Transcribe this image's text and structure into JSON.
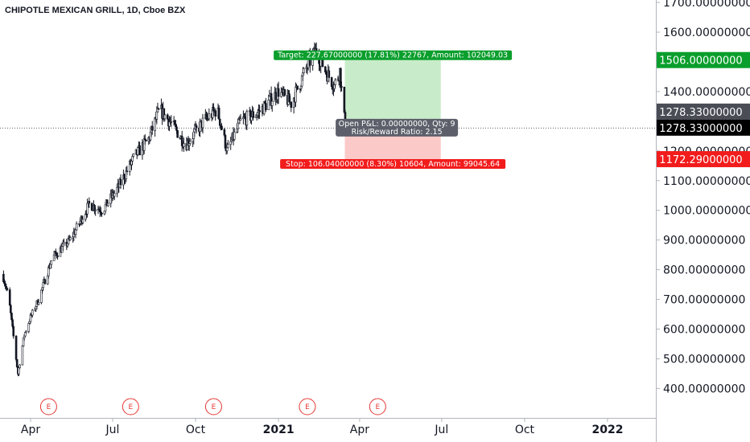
{
  "header": {
    "title": "CHIPOTLE MEXICAN GRILL, 1D, Cboe BZX"
  },
  "colors": {
    "target": "#0a9e2c",
    "stop": "#f21c1c",
    "profit_zone": "#c8ecc9",
    "loss_zone": "#fcc9c9",
    "tag_dark": "#4a4c56",
    "tag_black": "#000000",
    "candle": "#131722",
    "earnings": "#e53935"
  },
  "chart_data": {
    "type": "candlestick",
    "title": "CHIPOTLE MEXICAN GRILL, 1D, Cboe BZX",
    "y_axis": {
      "min": 350,
      "max": 1700,
      "ticks": [
        400,
        500,
        600,
        700,
        800,
        900,
        1000,
        1100,
        1200,
        1300,
        1400,
        1500,
        1600,
        1700
      ],
      "tick_labels": [
        "400.00000000",
        "500.00000000",
        "600.00000000",
        "700.00000000",
        "800.00000000",
        "900.00000000",
        "1000.00000000",
        "1100.00000000",
        "1200.00000000",
        "1300.00000000",
        "1400.00000000",
        "1500.00000000",
        "1600.00000000",
        "1700.00000000"
      ]
    },
    "x_axis": {
      "labels": [
        {
          "label": "Apr",
          "date": "2020-04-01"
        },
        {
          "label": "Jul",
          "date": "2020-07-01"
        },
        {
          "label": "Oct",
          "date": "2020-10-01"
        },
        {
          "label": "2021",
          "date": "2021-01-01"
        },
        {
          "label": "Apr",
          "date": "2021-04-01"
        },
        {
          "label": "Jul",
          "date": "2021-07-01"
        },
        {
          "label": "Oct",
          "date": "2021-10-01"
        },
        {
          "label": "2022",
          "date": "2022-01-01"
        }
      ]
    },
    "price_path": [
      {
        "date": "2020-03-01",
        "close": 785
      },
      {
        "date": "2020-03-08",
        "close": 700
      },
      {
        "date": "2020-03-18",
        "close": 450
      },
      {
        "date": "2020-03-25",
        "close": 580
      },
      {
        "date": "2020-04-01",
        "close": 640
      },
      {
        "date": "2020-04-10",
        "close": 700
      },
      {
        "date": "2020-04-25",
        "close": 840
      },
      {
        "date": "2020-05-15",
        "close": 900
      },
      {
        "date": "2020-06-05",
        "close": 1020
      },
      {
        "date": "2020-06-20",
        "close": 1000
      },
      {
        "date": "2020-07-08",
        "close": 1080
      },
      {
        "date": "2020-07-25",
        "close": 1180
      },
      {
        "date": "2020-08-10",
        "close": 1240
      },
      {
        "date": "2020-08-22",
        "close": 1340
      },
      {
        "date": "2020-09-05",
        "close": 1290
      },
      {
        "date": "2020-09-20",
        "close": 1220
      },
      {
        "date": "2020-10-10",
        "close": 1300
      },
      {
        "date": "2020-10-25",
        "close": 1340
      },
      {
        "date": "2020-11-05",
        "close": 1200
      },
      {
        "date": "2020-11-20",
        "close": 1300
      },
      {
        "date": "2020-12-10",
        "close": 1330
      },
      {
        "date": "2021-01-01",
        "close": 1400
      },
      {
        "date": "2021-01-15",
        "close": 1360
      },
      {
        "date": "2021-02-01",
        "close": 1480
      },
      {
        "date": "2021-02-12",
        "close": 1540
      },
      {
        "date": "2021-02-22",
        "close": 1470
      },
      {
        "date": "2021-03-04",
        "close": 1420
      },
      {
        "date": "2021-03-10",
        "close": 1470
      },
      {
        "date": "2021-03-16",
        "close": 1278
      }
    ],
    "earnings_markers": [
      "2020-04-21",
      "2020-07-21",
      "2020-10-21",
      "2021-02-02",
      "2021-04-21"
    ],
    "position": {
      "entry": 1278.33,
      "target": 1506.0,
      "stop": 1172.29,
      "start_date": "2021-03-16",
      "end_date": "2021-06-30"
    }
  },
  "position_tool": {
    "target_label": "Target: 227.67000000 (17.81%) 22767, Amount: 102049.03",
    "stop_label": "Stop: 106.04000000 (8.30%) 10604, Amount: 99045.64",
    "pnl_label": "Open P&L: 0.00000000, Qty: 9",
    "rr_label": "Risk/Reward Ratio: 2.15"
  },
  "earnings_marker_text": "E",
  "price_tags": {
    "target": "1506.00000000",
    "entry": "1278.33000000",
    "current": "1278.33000000",
    "stop": "1172.29000000"
  }
}
